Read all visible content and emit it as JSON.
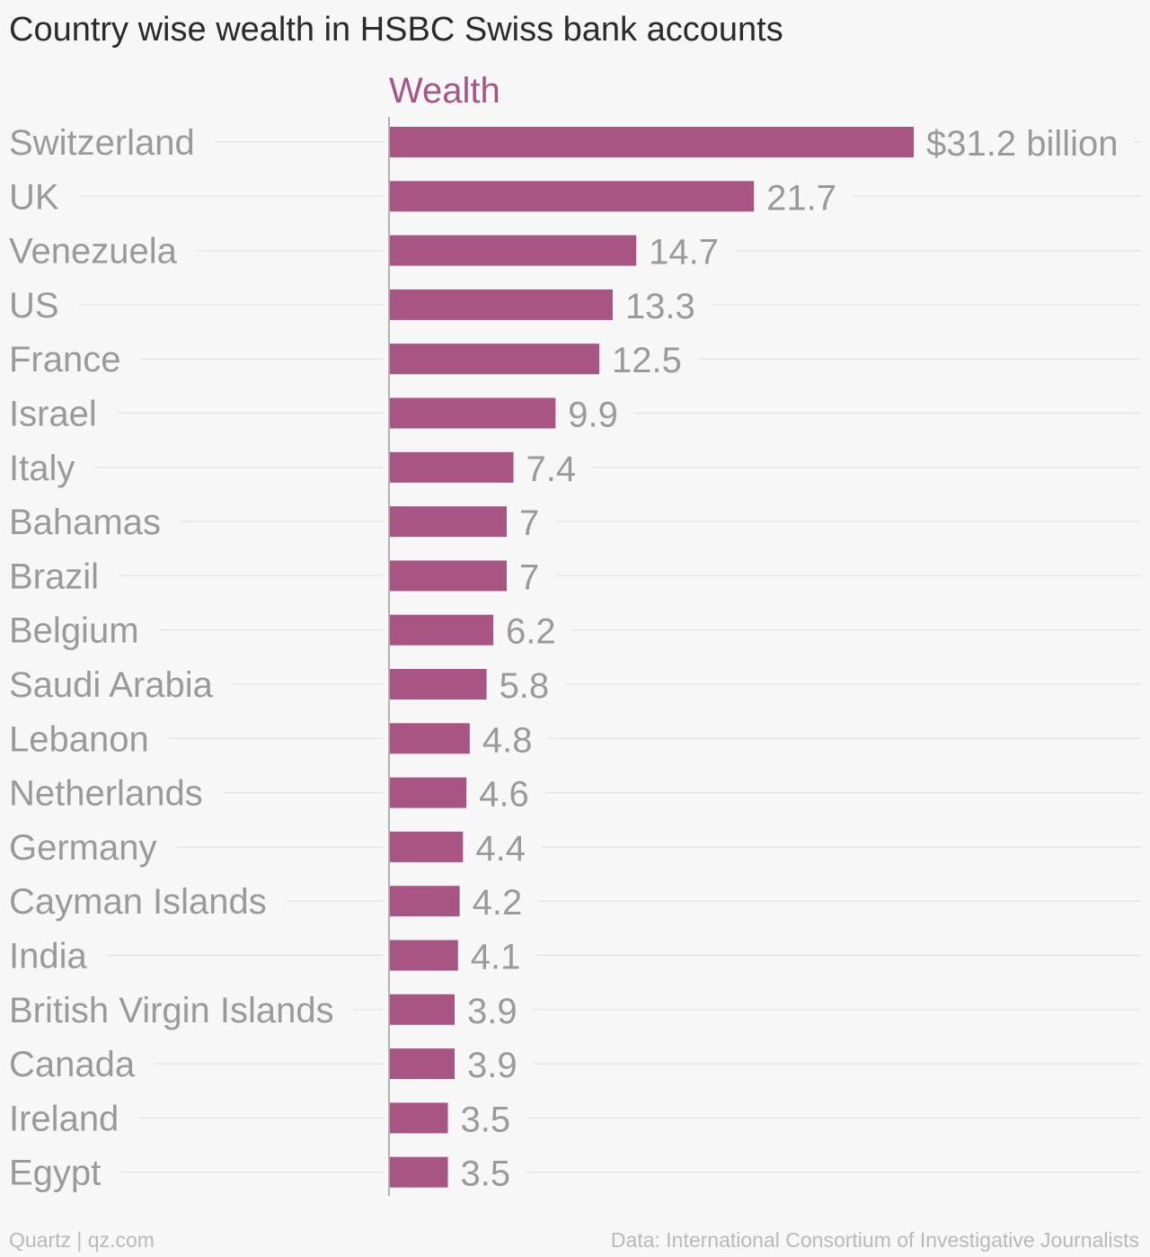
{
  "title": "Country wise wealth in HSBC Swiss bank accounts",
  "footer": {
    "source_left": "Quartz | qz.com",
    "source_right": "Data: International Consortium of Investigative Journalists"
  },
  "colors": {
    "bar": "#a85584",
    "series_label": "#a85584",
    "category_label": "#9a9a9a",
    "value_label": "#9a9a9a",
    "gridline": "#e6e6e6",
    "axis": "#b0b0b0"
  },
  "chart_data": {
    "type": "bar",
    "orientation": "horizontal",
    "title": "Country wise wealth in HSBC Swiss bank accounts",
    "series": [
      {
        "name": "Wealth",
        "values": [
          31.2,
          21.7,
          14.7,
          13.3,
          12.5,
          9.9,
          7.4,
          7,
          7,
          6.2,
          5.8,
          4.8,
          4.6,
          4.4,
          4.2,
          4.1,
          3.9,
          3.9,
          3.5,
          3.5
        ]
      }
    ],
    "categories": [
      "Switzerland",
      "UK",
      "Venezuela",
      "US",
      "France",
      "Israel",
      "Italy",
      "Bahamas",
      "Brazil",
      "Belgium",
      "Saudi Arabia",
      "Lebanon",
      "Netherlands",
      "Germany",
      "Cayman Islands",
      "India",
      "British Virgin Islands",
      "Canada",
      "Ireland",
      "Egypt"
    ],
    "value_labels": [
      "$31.2 billion",
      "21.7",
      "14.7",
      "13.3",
      "12.5",
      "9.9",
      "7.4",
      "7",
      "7",
      "6.2",
      "5.8",
      "4.8",
      "4.6",
      "4.4",
      "4.2",
      "4.1",
      "3.9",
      "3.9",
      "3.5",
      "3.5"
    ],
    "xlim": [
      0,
      31.2
    ],
    "grid": true,
    "legend": "none"
  }
}
